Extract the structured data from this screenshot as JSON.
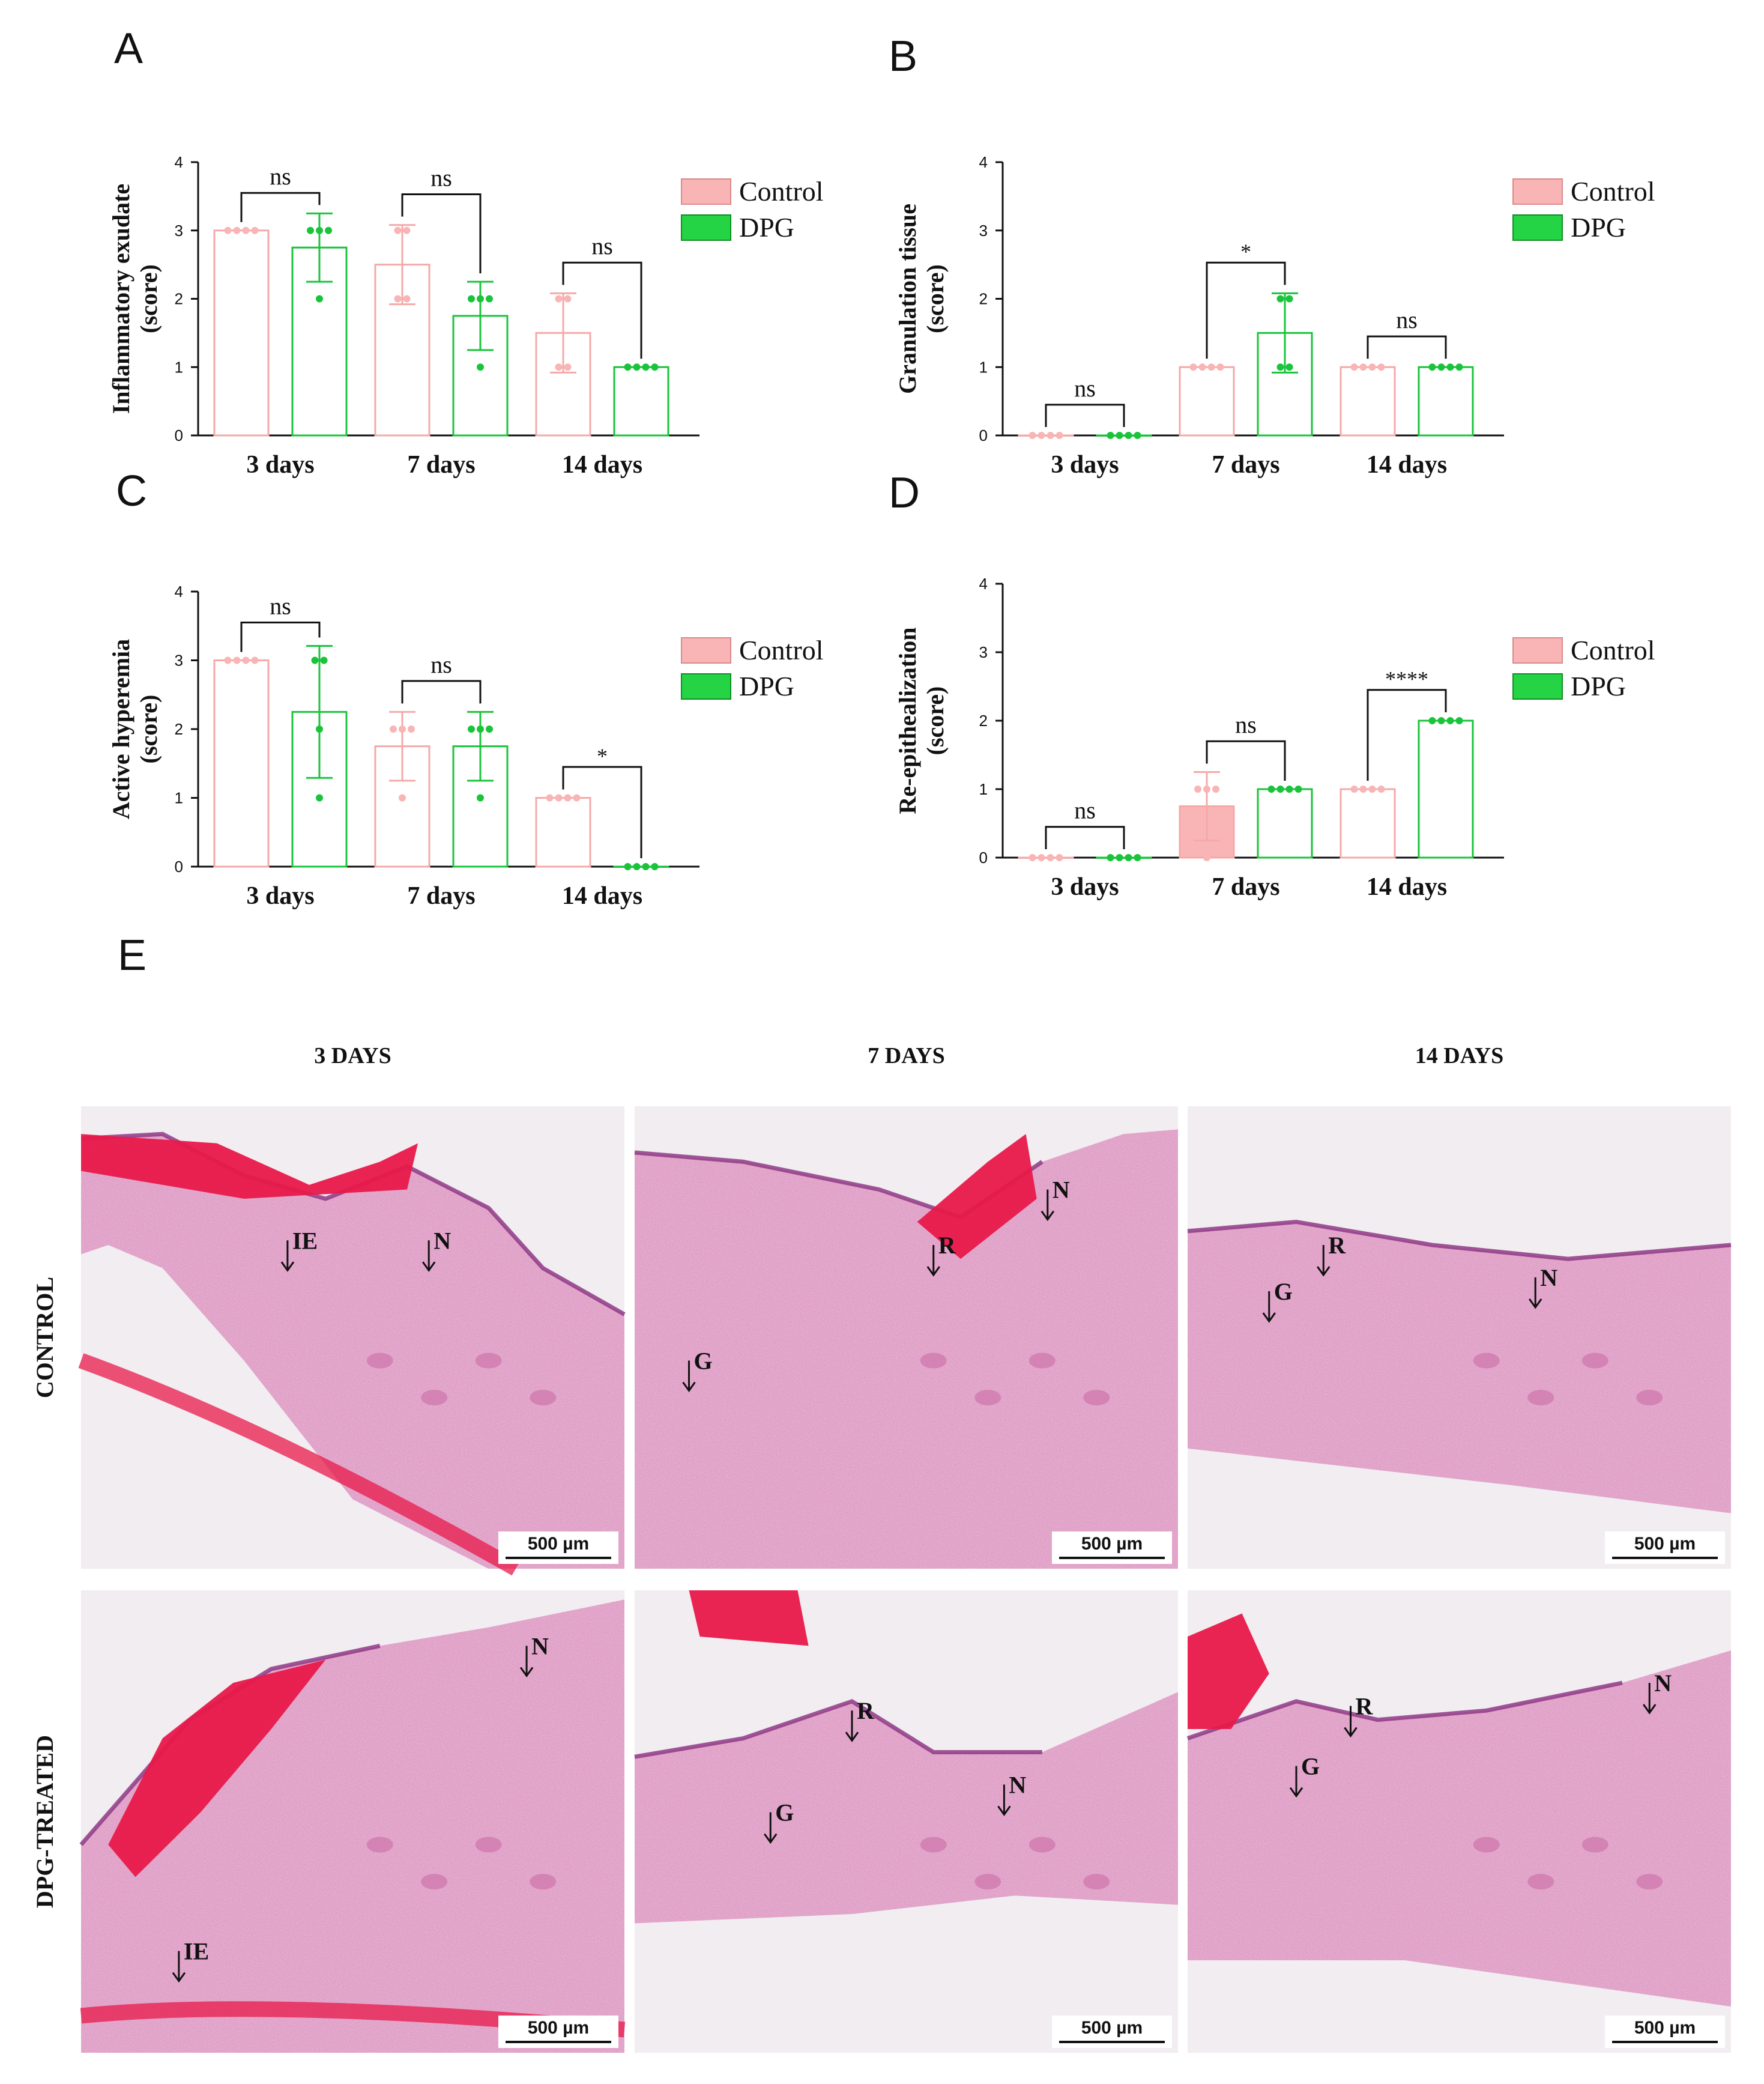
{
  "panel_letters": [
    "A",
    "B",
    "C",
    "D",
    "E"
  ],
  "chart_data": [
    {
      "type": "bar",
      "panel": "A",
      "ylabel": "Inflammatory exudate\n(score)",
      "ylim": [
        0,
        4
      ],
      "yticks": [
        "0",
        "1",
        "2",
        "3",
        "4"
      ],
      "categories": [
        "3 days",
        "7 days",
        "14 days"
      ],
      "series": [
        {
          "name": "Control",
          "values": [
            3.0,
            2.5,
            1.5
          ],
          "sd": [
            0.0,
            0.58,
            0.58
          ],
          "points": [
            [
              3,
              3,
              3,
              3
            ],
            [
              3,
              3,
              2,
              2
            ],
            [
              2,
              2,
              1,
              1
            ]
          ]
        },
        {
          "name": "DPG",
          "values": [
            2.75,
            1.75,
            1.0
          ],
          "sd": [
            0.5,
            0.5,
            0.0
          ],
          "points": [
            [
              3,
              3,
              3,
              2
            ],
            [
              2,
              2,
              2,
              1
            ],
            [
              1,
              1,
              1,
              1
            ]
          ]
        }
      ],
      "significance": [
        "ns",
        "ns",
        "ns"
      ],
      "legend": [
        "Control",
        "DPG"
      ],
      "legend_position": "top-right",
      "grid": false
    },
    {
      "type": "bar",
      "panel": "B",
      "ylabel": "Granulation tissue\n(score)",
      "ylim": [
        0,
        4
      ],
      "yticks": [
        "0",
        "1",
        "2",
        "3",
        "4"
      ],
      "categories": [
        "3 days",
        "7 days",
        "14 days"
      ],
      "series": [
        {
          "name": "Control",
          "values": [
            0,
            1.0,
            1.0
          ],
          "sd": [
            0,
            0,
            0
          ],
          "points": [
            [
              0,
              0,
              0,
              0
            ],
            [
              1,
              1,
              1,
              1
            ],
            [
              1,
              1,
              1,
              1
            ]
          ]
        },
        {
          "name": "DPG",
          "values": [
            0,
            1.5,
            1.0
          ],
          "sd": [
            0,
            0.58,
            0
          ],
          "points": [
            [
              0,
              0,
              0,
              0
            ],
            [
              2,
              2,
              1,
              1
            ],
            [
              1,
              1,
              1,
              1
            ]
          ]
        }
      ],
      "significance": [
        "ns",
        "*",
        "ns"
      ],
      "legend": [
        "Control",
        "DPG"
      ],
      "legend_position": "top-right",
      "grid": false
    },
    {
      "type": "bar",
      "panel": "C",
      "ylabel": "Active hyperemia\n(score)",
      "ylim": [
        0,
        4
      ],
      "yticks": [
        "0",
        "1",
        "2",
        "3",
        "4"
      ],
      "categories": [
        "3 days",
        "7 days",
        "14 days"
      ],
      "series": [
        {
          "name": "Control",
          "values": [
            3.0,
            1.75,
            1.0
          ],
          "sd": [
            0,
            0.5,
            0
          ],
          "points": [
            [
              3,
              3,
              3,
              3
            ],
            [
              2,
              2,
              2,
              1
            ],
            [
              1,
              1,
              1,
              1
            ]
          ]
        },
        {
          "name": "DPG",
          "values": [
            2.25,
            1.75,
            0
          ],
          "sd": [
            0.96,
            0.5,
            0
          ],
          "points": [
            [
              3,
              3,
              2,
              1
            ],
            [
              2,
              2,
              2,
              1
            ],
            [
              0,
              0,
              0,
              0
            ]
          ]
        }
      ],
      "significance": [
        "ns",
        "ns",
        "*"
      ],
      "legend": [
        "Control",
        "DPG"
      ],
      "legend_position": "top-right",
      "grid": false
    },
    {
      "type": "bar",
      "panel": "D",
      "ylabel": "Re-epithealization\n(score)",
      "ylim": [
        0,
        4
      ],
      "yticks": [
        "0",
        "1",
        "2",
        "3",
        "4"
      ],
      "categories": [
        "3 days",
        "7 days",
        "14 days"
      ],
      "series": [
        {
          "name": "Control",
          "values": [
            0,
            0.75,
            1.0
          ],
          "sd": [
            0,
            0.5,
            0
          ],
          "points": [
            [
              0,
              0,
              0,
              0
            ],
            [
              1,
              1,
              1,
              0
            ],
            [
              1,
              1,
              1,
              1
            ]
          ]
        },
        {
          "name": "DPG",
          "values": [
            0,
            1.0,
            2.0
          ],
          "sd": [
            0,
            0,
            0
          ],
          "points": [
            [
              0,
              0,
              0,
              0
            ],
            [
              1,
              1,
              1,
              1
            ],
            [
              2,
              2,
              2,
              2
            ]
          ]
        }
      ],
      "significance": [
        "ns",
        "ns",
        "****"
      ],
      "legend": [
        "Control",
        "DPG"
      ],
      "legend_position": "top-right",
      "grid": false
    }
  ],
  "micrographs": {
    "column_headers": [
      "3 DAYS",
      "7 DAYS",
      "14 DAYS"
    ],
    "row_labels": [
      "CONTROL",
      "DPG-TREATED"
    ],
    "scale_bar": "500 µm",
    "tiles": [
      {
        "labels": [
          "IE",
          "N"
        ]
      },
      {
        "labels": [
          "N",
          "R",
          "G"
        ]
      },
      {
        "labels": [
          "R",
          "N",
          "G"
        ]
      },
      {
        "labels": [
          "N",
          "IE"
        ]
      },
      {
        "labels": [
          "R",
          "N",
          "G"
        ]
      },
      {
        "labels": [
          "R",
          "N",
          "G"
        ]
      }
    ]
  },
  "colors": {
    "control_stroke": "#f5a9a9",
    "control_fill": "#f9b5b5",
    "dpg_stroke": "#19c43a",
    "dpg_fill": "#25d444",
    "tissue_base": "#ecb8d2",
    "tissue_dark": "#d07aae",
    "tissue_red": "#e8194a",
    "slide_bg": "#f1edf1",
    "epidermis": "#8f3a86"
  }
}
